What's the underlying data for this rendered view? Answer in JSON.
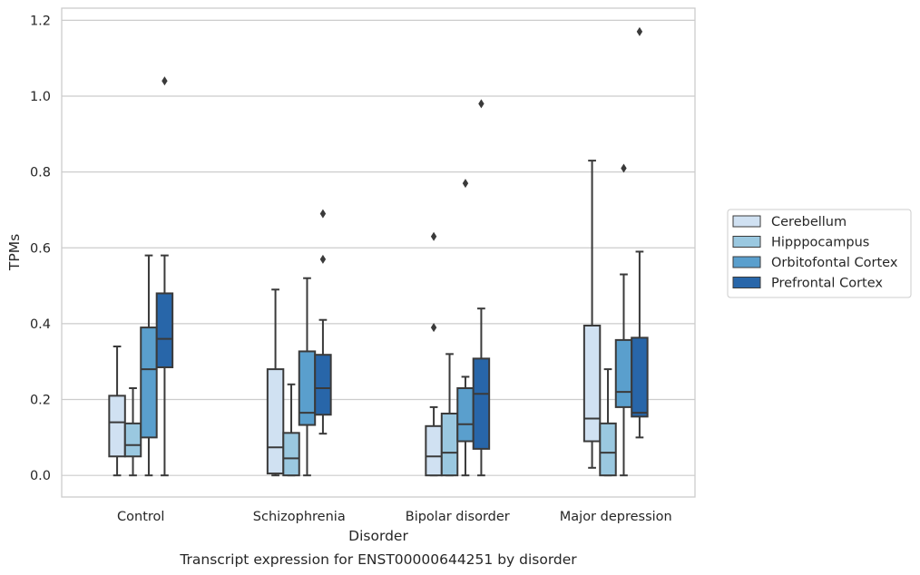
{
  "chart_data": {
    "type": "box",
    "xlabel": "Disorder",
    "ylabel": "TPMs",
    "ylim": [
      -0.057,
      1.232
    ],
    "yticks": [
      0.0,
      0.2,
      0.4,
      0.6,
      0.8,
      1.0,
      1.2
    ],
    "ytick_labels": [
      "0.0",
      "0.2",
      "0.4",
      "0.6",
      "0.8",
      "1.0",
      "1.2"
    ],
    "grid": true,
    "legend_position": "right",
    "categories": [
      "Control",
      "Schizophrenia",
      "Bipolar disorder",
      "Major depression"
    ],
    "series": [
      {
        "name": "Cerebellum",
        "color": "#d0e1f2",
        "boxes": [
          {
            "whislo": 0.0,
            "q1": 0.05,
            "med": 0.14,
            "q3": 0.21,
            "whishi": 0.34,
            "fliers": []
          },
          {
            "whislo": 0.0,
            "q1": 0.005,
            "med": 0.074,
            "q3": 0.28,
            "whishi": 0.49,
            "fliers": []
          },
          {
            "whislo": 0.0,
            "q1": 0.0,
            "med": 0.05,
            "q3": 0.13,
            "whishi": 0.18,
            "fliers": [
              0.39,
              0.63
            ]
          },
          {
            "whislo": 0.02,
            "q1": 0.09,
            "med": 0.15,
            "q3": 0.395,
            "whishi": 0.83,
            "fliers": []
          }
        ]
      },
      {
        "name": "Hipppocampus",
        "color": "#9ac8e0",
        "boxes": [
          {
            "whislo": 0.0,
            "q1": 0.05,
            "med": 0.08,
            "q3": 0.137,
            "whishi": 0.23,
            "fliers": []
          },
          {
            "whislo": 0.0,
            "q1": 0.0,
            "med": 0.045,
            "q3": 0.112,
            "whishi": 0.24,
            "fliers": []
          },
          {
            "whislo": 0.0,
            "q1": 0.0,
            "med": 0.06,
            "q3": 0.163,
            "whishi": 0.32,
            "fliers": []
          },
          {
            "whislo": 0.0,
            "q1": 0.0,
            "med": 0.06,
            "q3": 0.137,
            "whishi": 0.28,
            "fliers": []
          }
        ]
      },
      {
        "name": "Orbitofontal Cortex",
        "color": "#5a9fcd",
        "boxes": [
          {
            "whislo": 0.0,
            "q1": 0.1,
            "med": 0.28,
            "q3": 0.39,
            "whishi": 0.58,
            "fliers": []
          },
          {
            "whislo": 0.0,
            "q1": 0.133,
            "med": 0.165,
            "q3": 0.327,
            "whishi": 0.52,
            "fliers": []
          },
          {
            "whislo": 0.0,
            "q1": 0.09,
            "med": 0.135,
            "q3": 0.23,
            "whishi": 0.26,
            "fliers": [
              0.77
            ]
          },
          {
            "whislo": 0.0,
            "q1": 0.18,
            "med": 0.22,
            "q3": 0.357,
            "whishi": 0.53,
            "fliers": [
              0.81
            ]
          }
        ]
      },
      {
        "name": "Prefrontal Cortex",
        "color": "#2866a9",
        "boxes": [
          {
            "whislo": 0.0,
            "q1": 0.285,
            "med": 0.36,
            "q3": 0.48,
            "whishi": 0.58,
            "fliers": [
              1.04
            ]
          },
          {
            "whislo": 0.11,
            "q1": 0.16,
            "med": 0.23,
            "q3": 0.318,
            "whishi": 0.41,
            "fliers": [
              0.57,
              0.69
            ]
          },
          {
            "whislo": 0.0,
            "q1": 0.07,
            "med": 0.215,
            "q3": 0.308,
            "whishi": 0.44,
            "fliers": [
              0.98
            ]
          },
          {
            "whislo": 0.1,
            "q1": 0.155,
            "med": 0.165,
            "q3": 0.363,
            "whishi": 0.59,
            "fliers": [
              1.17
            ]
          }
        ]
      }
    ]
  },
  "caption": "Transcript expression for ENST00000644251 by disorder"
}
